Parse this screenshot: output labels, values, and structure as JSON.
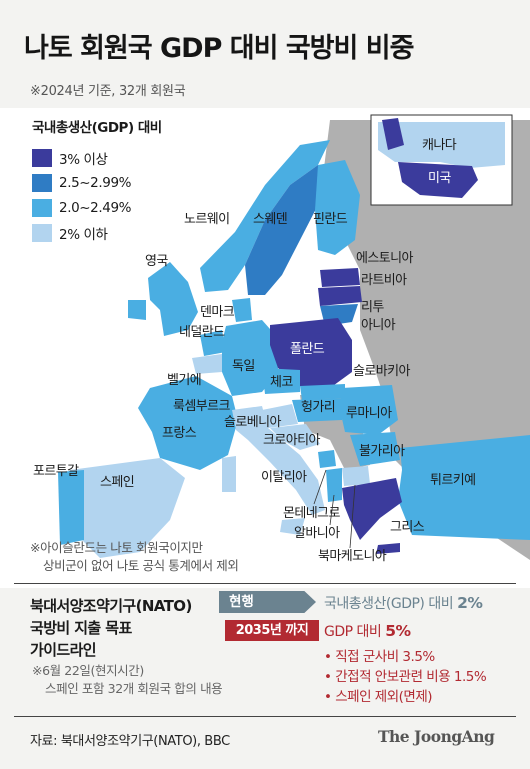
{
  "title": "나토 회원국 GDP 대비 국방비 비중",
  "subtitle": "※2024년 기준, 32개 회원국",
  "legend": {
    "title": "국내총생산(GDP) 대비",
    "items": [
      {
        "label": "3% 이상",
        "color": "#3b3b9c"
      },
      {
        "label": "2.5~2.99%",
        "color": "#2f7cc4"
      },
      {
        "label": "2.0~2.49%",
        "color": "#4aaee2"
      },
      {
        "label": "2% 이하",
        "color": "#b2d4ef"
      }
    ]
  },
  "colors": {
    "non_member": "#b0b0b0",
    "sea": "#ffffff",
    "target_current": "#6b8390",
    "target_2035": "#b22a32"
  },
  "countries": {
    "canada": "캐나다",
    "usa": "미국",
    "norway": "노르웨이",
    "sweden": "스웨덴",
    "finland": "핀란드",
    "uk": "영국",
    "estonia": "에스토니아",
    "latvia": "라트비아",
    "lithuania": "리투아니아",
    "denmark": "덴마크",
    "netherlands": "네덜란드",
    "poland": "폴란드",
    "belgium": "벨기에",
    "germany": "독일",
    "czech": "체코",
    "slovakia": "슬로바키아",
    "luxembourg": "룩셈부르크",
    "hungary": "헝가리",
    "romania": "루마니아",
    "france": "프랑스",
    "slovenia": "슬로베니아",
    "croatia": "크로아티아",
    "bulgaria": "불가리아",
    "portugal": "포르투갈",
    "spain": "스페인",
    "italy": "이탈리아",
    "turkey": "튀르키예",
    "montenegro": "몬테네그로",
    "albania": "알바니아",
    "greece": "그리스",
    "north_macedonia": "북마케도니아"
  },
  "notes": {
    "iceland": [
      "※아이슬란드는 나토 회원국이지만",
      "상비군이 없어 나토 공식 통계에서 제외"
    ],
    "june": [
      "※6월 22일(현지시간)",
      "스페인 포함 32개 회원국 합의 내용"
    ]
  },
  "target": {
    "heading": [
      "북대서양조약기구(NATO)",
      "국방비 지출 목표",
      "가이드라인"
    ],
    "current_label": "현행",
    "current_text": "국내총생산(GDP) 대비",
    "current_value": "2%",
    "future_label": "2035년 까지",
    "future_text": "GDP 대비",
    "future_value": "5%",
    "bullets": [
      "• 직접 군사비 3.5%",
      "• 간접적 안보관련 비용 1.5%",
      "• 스페인 제외(면제)"
    ]
  },
  "source": "자료: 북대서양조약기구(NATO), BBC",
  "logo": "The JoongAng"
}
